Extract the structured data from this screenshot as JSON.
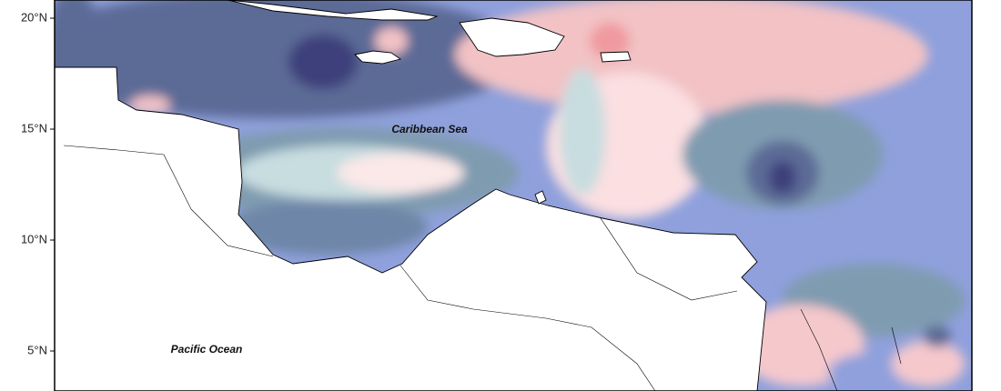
{
  "map": {
    "lat_labels": [
      "20°N",
      "15°N",
      "10°N",
      "5°N"
    ],
    "labels": [
      "Caribbean Sea",
      "Pacific Ocean"
    ]
  }
}
